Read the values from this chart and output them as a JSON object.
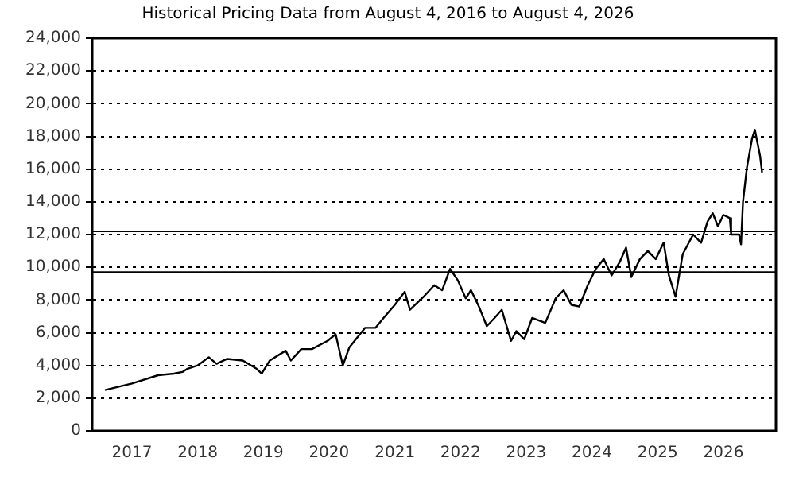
{
  "chart_data": {
    "type": "line",
    "title": "Historical Pricing Data from August 4, 2016 to August 4, 2026",
    "xlim": [
      "2016-05-25",
      "2026-10-20"
    ],
    "xticks": [
      "2017",
      "2018",
      "2019",
      "2020",
      "2021",
      "2022",
      "2023",
      "2024",
      "2025",
      "2026"
    ],
    "ylim": [
      0,
      24000
    ],
    "yticks": [
      {
        "value": 0,
        "label": "0"
      },
      {
        "value": 2000,
        "label": "2,000"
      },
      {
        "value": 4000,
        "label": "4,000"
      },
      {
        "value": 6000,
        "label": "6,000"
      },
      {
        "value": 8000,
        "label": "8,000"
      },
      {
        "value": 10000,
        "label": "10,000"
      },
      {
        "value": 12000,
        "label": "12,000"
      },
      {
        "value": 14000,
        "label": "14,000"
      },
      {
        "value": 16000,
        "label": "16,000"
      },
      {
        "value": 18000,
        "label": "18,000"
      },
      {
        "value": 20000,
        "label": "20,000"
      },
      {
        "value": 22000,
        "label": "22,000"
      },
      {
        "value": 24000,
        "label": "24,000"
      }
    ],
    "grid": "y",
    "legend": false,
    "marker": "none",
    "line_style": "solid",
    "ref_lines": [
      {
        "axis": "y",
        "value": 12200,
        "color": "#000000"
      },
      {
        "axis": "y",
        "value": 9700,
        "color": "#000000"
      }
    ],
    "x": [
      "2016-08-04",
      "2017-01-01",
      "2017-05-26",
      "2017-08-22",
      "2017-10-08",
      "2017-11-06",
      "2018-01-01",
      "2018-03-04",
      "2018-04-16",
      "2018-06-14",
      "2018-09-09",
      "2018-11-24",
      "2018-12-23",
      "2019-02-06",
      "2019-05-05",
      "2019-06-03",
      "2019-07-31",
      "2019-09-28",
      "2019-12-24",
      "2020-02-07",
      "2020-03-18",
      "2020-04-23",
      "2020-07-20",
      "2020-09-16",
      "2020-10-30",
      "2021-01-01",
      "2021-02-25",
      "2021-03-26",
      "2021-06-10",
      "2021-08-08",
      "2021-09-21",
      "2021-11-04",
      "2021-12-17",
      "2022-01-30",
      "2022-02-28",
      "2022-04-13",
      "2022-05-27",
      "2022-07-09",
      "2022-08-18",
      "2022-10-09",
      "2022-11-07",
      "2022-12-21",
      "2023-02-03",
      "2023-04-17",
      "2023-06-14",
      "2023-07-28",
      "2023-09-09",
      "2023-10-23",
      "2023-12-09",
      "2024-01-23",
      "2024-03-07",
      "2024-04-20",
      "2024-06-03",
      "2024-07-09",
      "2024-08-07",
      "2024-09-24",
      "2024-11-07",
      "2024-12-21",
      "2025-02-03",
      "2025-03-04",
      "2025-04-10",
      "2025-05-20",
      "2025-07-17",
      "2025-08-30",
      "2025-10-05",
      "2025-11-03",
      "2025-12-02",
      "2026-01-01",
      "2026-02-06",
      "2026-02-13",
      "2026-03-29",
      "2026-04-09",
      "2026-04-20",
      "2026-05-12",
      "2026-06-10",
      "2026-06-25",
      "2026-07-13",
      "2026-07-24",
      "2026-08-04"
    ],
    "series": [
      {
        "color": "#000000",
        "values": [
          2500,
          2900,
          3400,
          3500,
          3600,
          3800,
          4000,
          4500,
          4100,
          4400,
          4300,
          3800,
          3500,
          4300,
          4900,
          4300,
          5000,
          5000,
          5500,
          5900,
          4000,
          5100,
          6300,
          6300,
          6900,
          7700,
          8500,
          7400,
          8200,
          8900,
          8600,
          9900,
          9200,
          8100,
          8600,
          7600,
          6400,
          6900,
          7400,
          5500,
          6100,
          5600,
          6900,
          6600,
          8100,
          8600,
          7700,
          7600,
          8900,
          9900,
          10500,
          9500,
          10300,
          11200,
          9400,
          10500,
          11000,
          10500,
          11500,
          9500,
          8200,
          10800,
          12000,
          11500,
          12800,
          13300,
          12500,
          13200,
          13000,
          12000,
          12000,
          11400,
          14000,
          16100,
          17900,
          18400,
          17400,
          16800,
          15800
        ]
      }
    ]
  }
}
